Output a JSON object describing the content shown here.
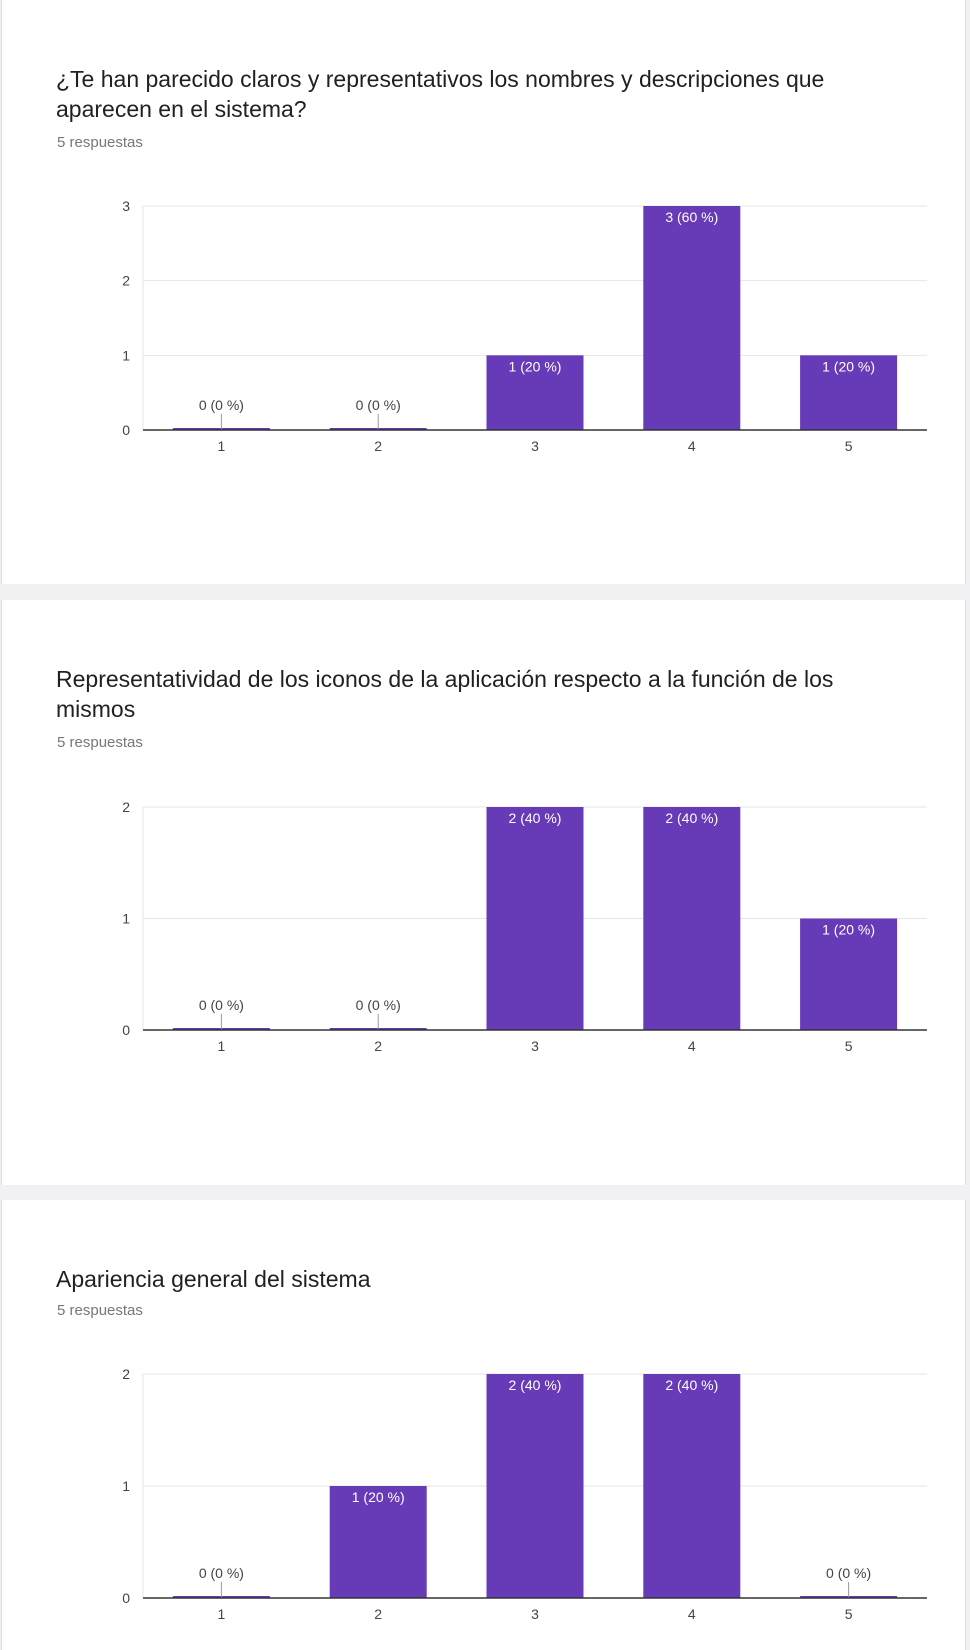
{
  "accent_color": "#673ab7",
  "questions": [
    {
      "title": "¿Te han parecido claros y representativos los nombres y descripciones que aparecen en el sistema?",
      "responses": "5 respuestas"
    },
    {
      "title": "Representatividad de los iconos de la aplicación respecto a la función de los mismos",
      "responses": "5 respuestas"
    },
    {
      "title": "Apariencia general del sistema",
      "responses": "5 respuestas"
    }
  ],
  "chart_data": [
    {
      "type": "bar",
      "categories": [
        "1",
        "2",
        "3",
        "4",
        "5"
      ],
      "values": [
        0,
        0,
        1,
        3,
        1
      ],
      "labels": [
        "0 (0 %)",
        "0 (0 %)",
        "1 (20 %)",
        "3 (60 %)",
        "1 (20 %)"
      ],
      "ylim": [
        0,
        3
      ],
      "yticks": [
        0,
        1,
        2,
        3
      ],
      "grid": true,
      "color": "#673ab7"
    },
    {
      "type": "bar",
      "categories": [
        "1",
        "2",
        "3",
        "4",
        "5"
      ],
      "values": [
        0,
        0,
        2,
        2,
        1
      ],
      "labels": [
        "0 (0 %)",
        "0 (0 %)",
        "2 (40 %)",
        "2 (40 %)",
        "1 (20 %)"
      ],
      "ylim": [
        0,
        2
      ],
      "yticks": [
        0,
        1,
        2
      ],
      "grid": true,
      "color": "#673ab7"
    },
    {
      "type": "bar",
      "categories": [
        "1",
        "2",
        "3",
        "4",
        "5"
      ],
      "values": [
        0,
        1,
        2,
        2,
        0
      ],
      "labels": [
        "0 (0 %)",
        "1 (20 %)",
        "2 (40 %)",
        "2 (40 %)",
        "0 (0 %)"
      ],
      "ylim": [
        0,
        2
      ],
      "yticks": [
        0,
        1,
        2
      ],
      "grid": true,
      "color": "#673ab7"
    }
  ]
}
